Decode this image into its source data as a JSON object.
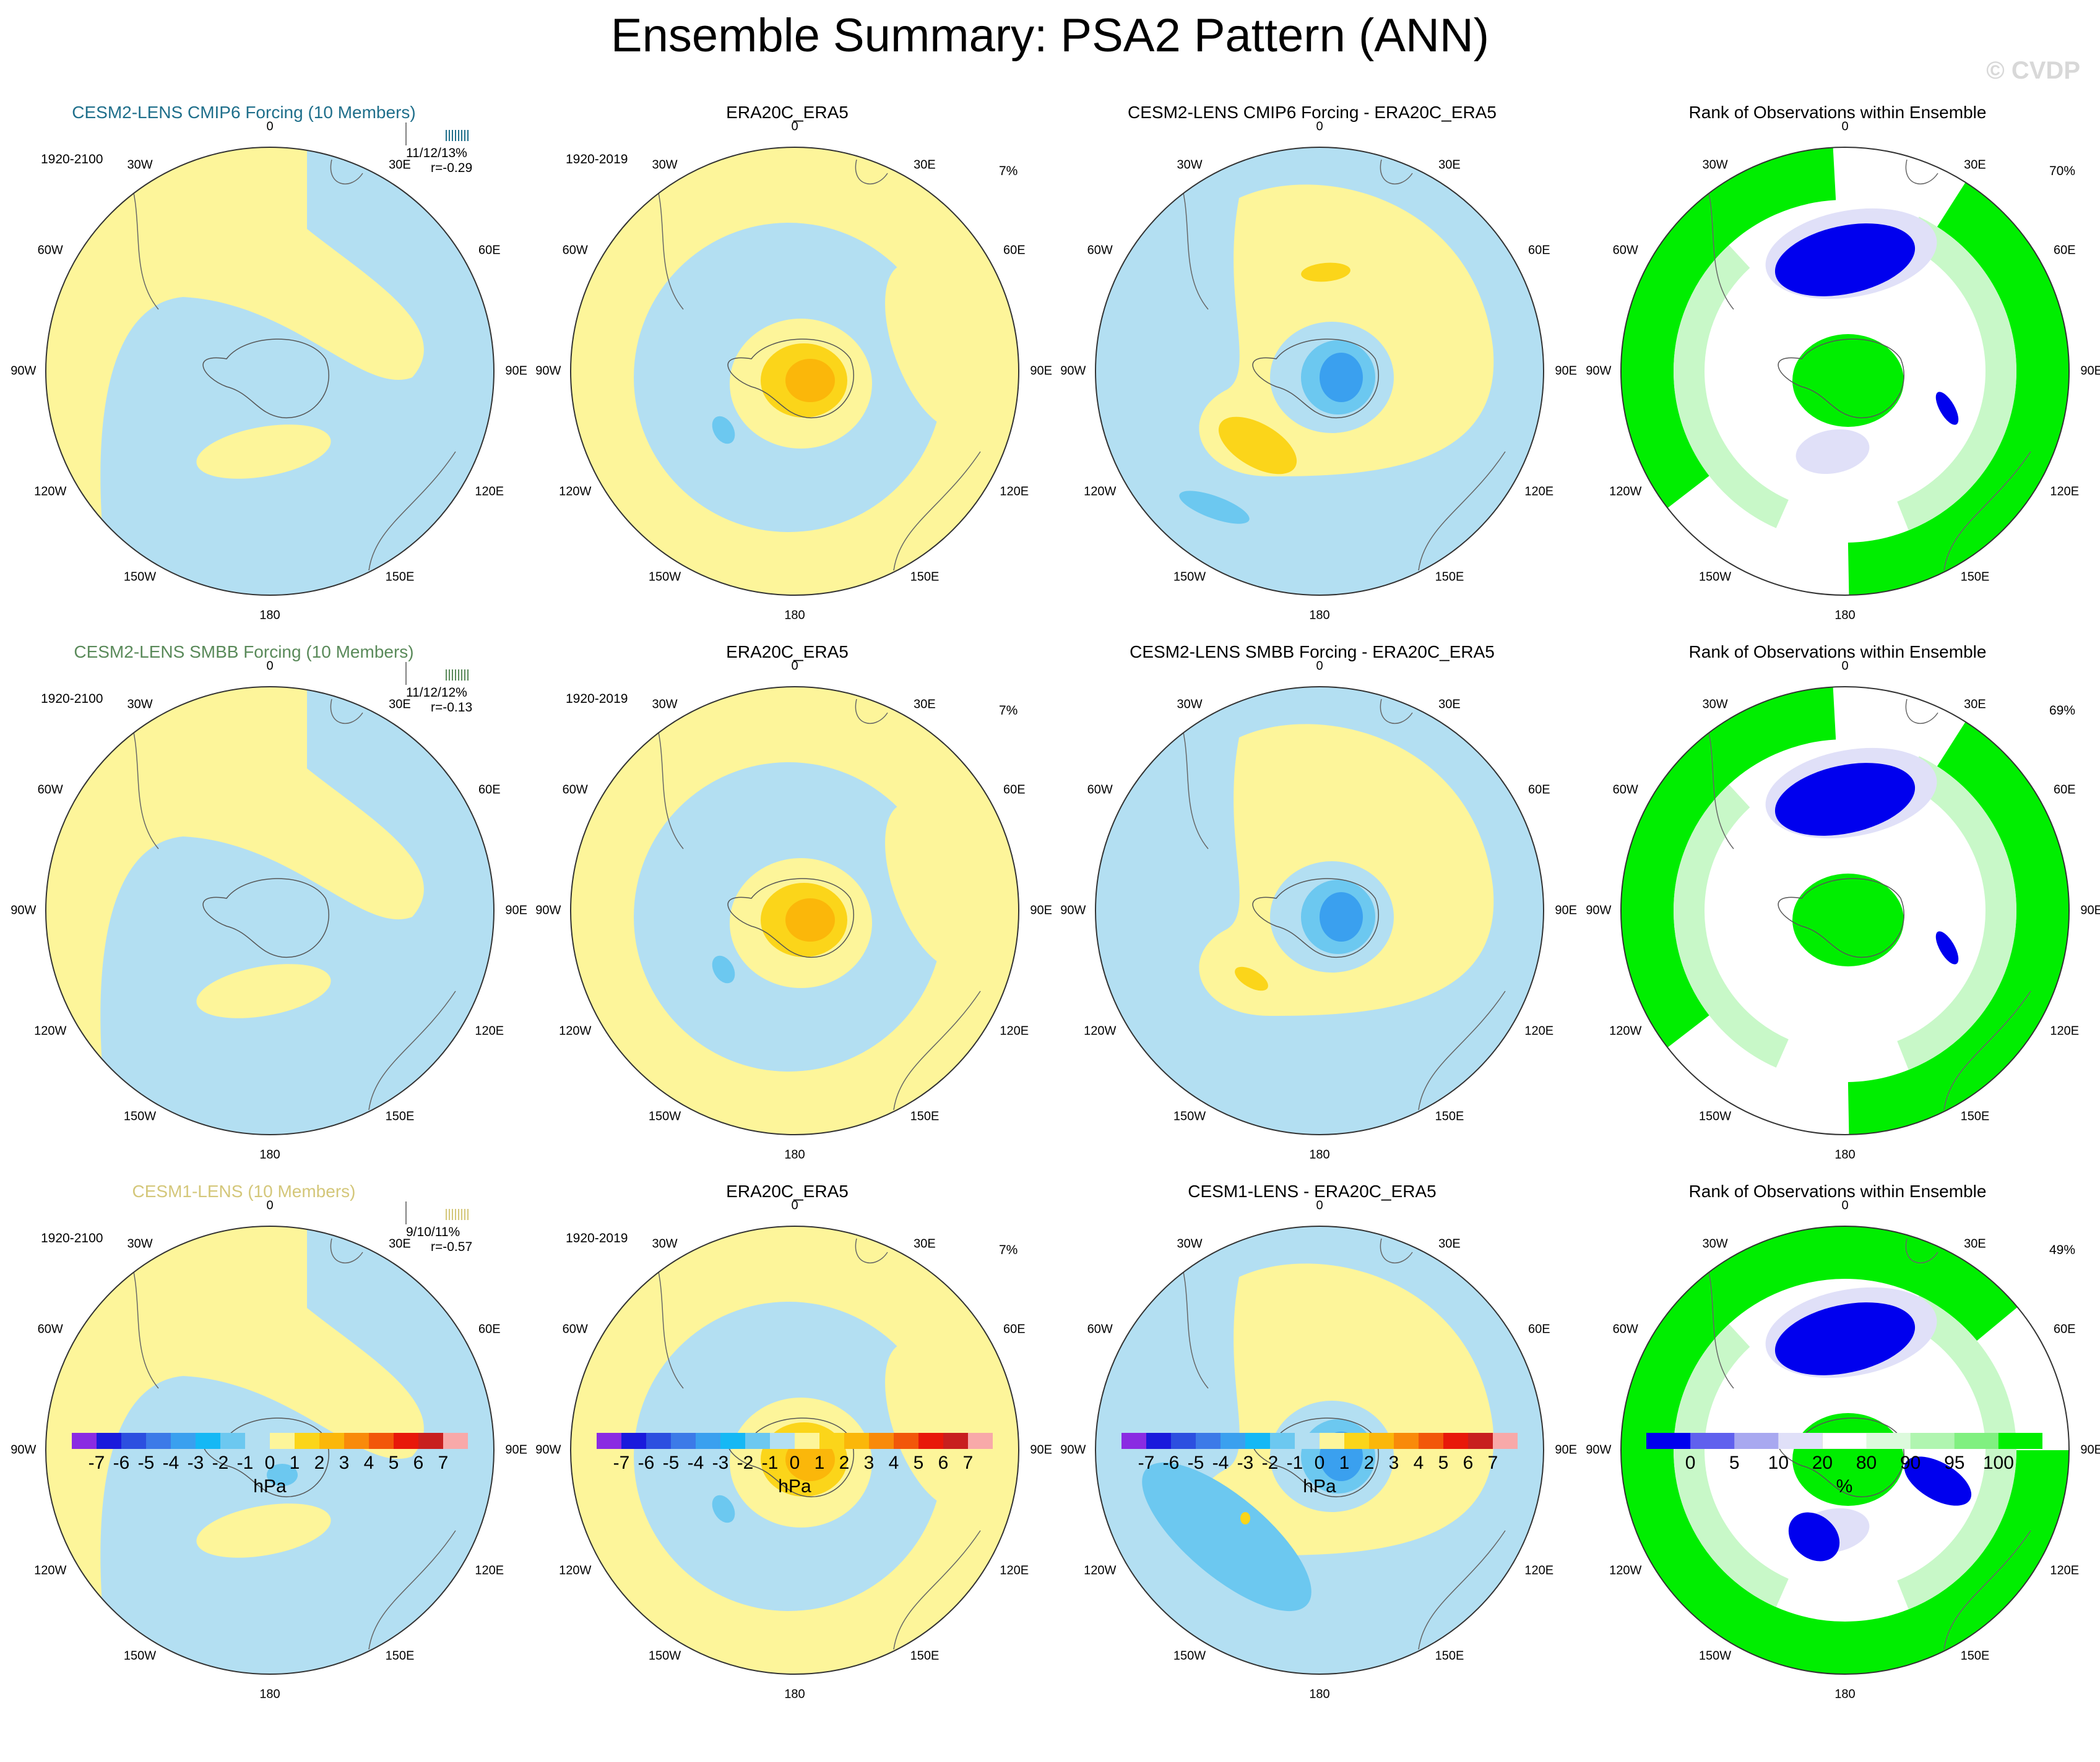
{
  "title": "Ensemble Summary: PSA2 Pattern (ANN)",
  "watermark": "© CVDP",
  "chart_data": {
    "type": "heatmap",
    "projection": "south-polar stereographic",
    "rows": [
      {
        "model": {
          "title": "CESM2-LENS CMIP6 Forcing (10 Members)",
          "title_color": "#1f6f8b",
          "period": "1920-2100",
          "stats_line1": "11/12/13%",
          "stats_line2": "r=-0.29"
        },
        "obs": {
          "title": "ERA20C_ERA5",
          "period": "1920-2019",
          "pct": "7%"
        },
        "diff": {
          "title": "CESM2-LENS CMIP6 Forcing - ERA20C_ERA5"
        },
        "rank": {
          "title": "Rank of Observations within Ensemble",
          "pct": "70%"
        }
      },
      {
        "model": {
          "title": "CESM2-LENS SMBB Forcing (10 Members)",
          "title_color": "#5a8a5a",
          "period": "1920-2100",
          "stats_line1": "11/12/12%",
          "stats_line2": "r=-0.13"
        },
        "obs": {
          "title": "ERA20C_ERA5",
          "period": "1920-2019",
          "pct": "7%"
        },
        "diff": {
          "title": "CESM2-LENS SMBB Forcing - ERA20C_ERA5"
        },
        "rank": {
          "title": "Rank of Observations within Ensemble",
          "pct": "69%"
        }
      },
      {
        "model": {
          "title": "CESM1-LENS (10 Members)",
          "title_color": "#d4c77a",
          "period": "1920-2100",
          "stats_line1": "9/10/11%",
          "stats_line2": "r=-0.57"
        },
        "obs": {
          "title": "ERA20C_ERA5",
          "period": "1920-2019",
          "pct": "7%"
        },
        "diff": {
          "title": "CESM1-LENS - ERA20C_ERA5"
        },
        "rank": {
          "title": "Rank of Observations within Ensemble",
          "pct": "49%"
        }
      }
    ],
    "map_labels": {
      "top": "0",
      "bottom": "180",
      "left": "90W",
      "right": "90E",
      "upper_left_inner": "30W",
      "upper_right_inner": "30E",
      "left_upper": "60W",
      "right_upper": "60E",
      "left_lower": "120W",
      "right_lower": "120E",
      "lower_left_inner": "150W",
      "lower_right_inner": "150E"
    },
    "colorbar_hpa": {
      "units": "hPa",
      "tick_labels": [
        "-7",
        "-6",
        "-5",
        "-4",
        "-3",
        "-2",
        "-1",
        "0",
        "1",
        "2",
        "3",
        "4",
        "5",
        "6",
        "7"
      ],
      "colors": [
        "#8a2be2",
        "#1a1adc",
        "#2c4fe0",
        "#3c7ae8",
        "#3aa0ef",
        "#15b8f5",
        "#6cc8f0",
        "#b3dff2",
        "#fdf59a",
        "#fbd51a",
        "#fbb70a",
        "#f98a0a",
        "#f2570a",
        "#e8180a",
        "#c81f1f",
        "#f8a9a9"
      ]
    },
    "colorbar_rank": {
      "units": "%",
      "tick_labels": [
        "0",
        "5",
        "10",
        "20",
        "80",
        "90",
        "95",
        "100"
      ],
      "colors": [
        "#0000ee",
        "#6060ee",
        "#a8a8f0",
        "#e0e0f8",
        "#ffffff",
        "#dcfadc",
        "#b0f5b0",
        "#80f080",
        "#00ee00"
      ]
    }
  }
}
